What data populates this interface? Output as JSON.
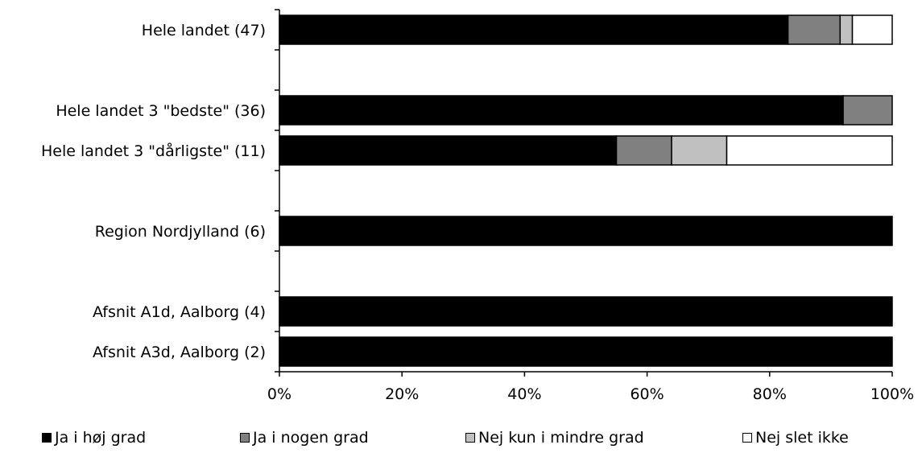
{
  "chart_data": {
    "type": "bar",
    "orientation": "horizontal",
    "stacked": true,
    "categories": [
      "Hele landet  (47)",
      "Hele landet 3 \"bedste\" (36)",
      "Hele landet 3 \"dårligste\" (11)",
      "Region Nordjylland (6)",
      "Afsnit A1d, Aalborg (4)",
      "Afsnit A3d, Aalborg (2)"
    ],
    "slots": [
      0,
      2,
      3,
      5,
      7,
      8
    ],
    "slot_count": 9,
    "series": [
      {
        "name": "Ja i høj grad",
        "color": "#000000",
        "values": [
          83,
          92,
          55,
          100,
          100,
          100
        ]
      },
      {
        "name": "Ja i nogen grad",
        "color": "#808080",
        "values": [
          8.5,
          8,
          9,
          0,
          0,
          0
        ]
      },
      {
        "name": "Nej kun i mindre grad",
        "color": "#c0c0c0",
        "values": [
          2,
          0,
          9,
          0,
          0,
          0
        ]
      },
      {
        "name": "Nej slet ikke",
        "color": "#ffffff",
        "values": [
          6.5,
          0,
          27,
          0,
          0,
          0
        ]
      }
    ],
    "xlim": [
      0,
      100
    ],
    "xticks": [
      0,
      20,
      40,
      60,
      80,
      100
    ],
    "xtick_labels": [
      "0%",
      "20%",
      "40%",
      "60%",
      "80%",
      "100%"
    ],
    "legend_position": "bottom",
    "grid": false
  }
}
